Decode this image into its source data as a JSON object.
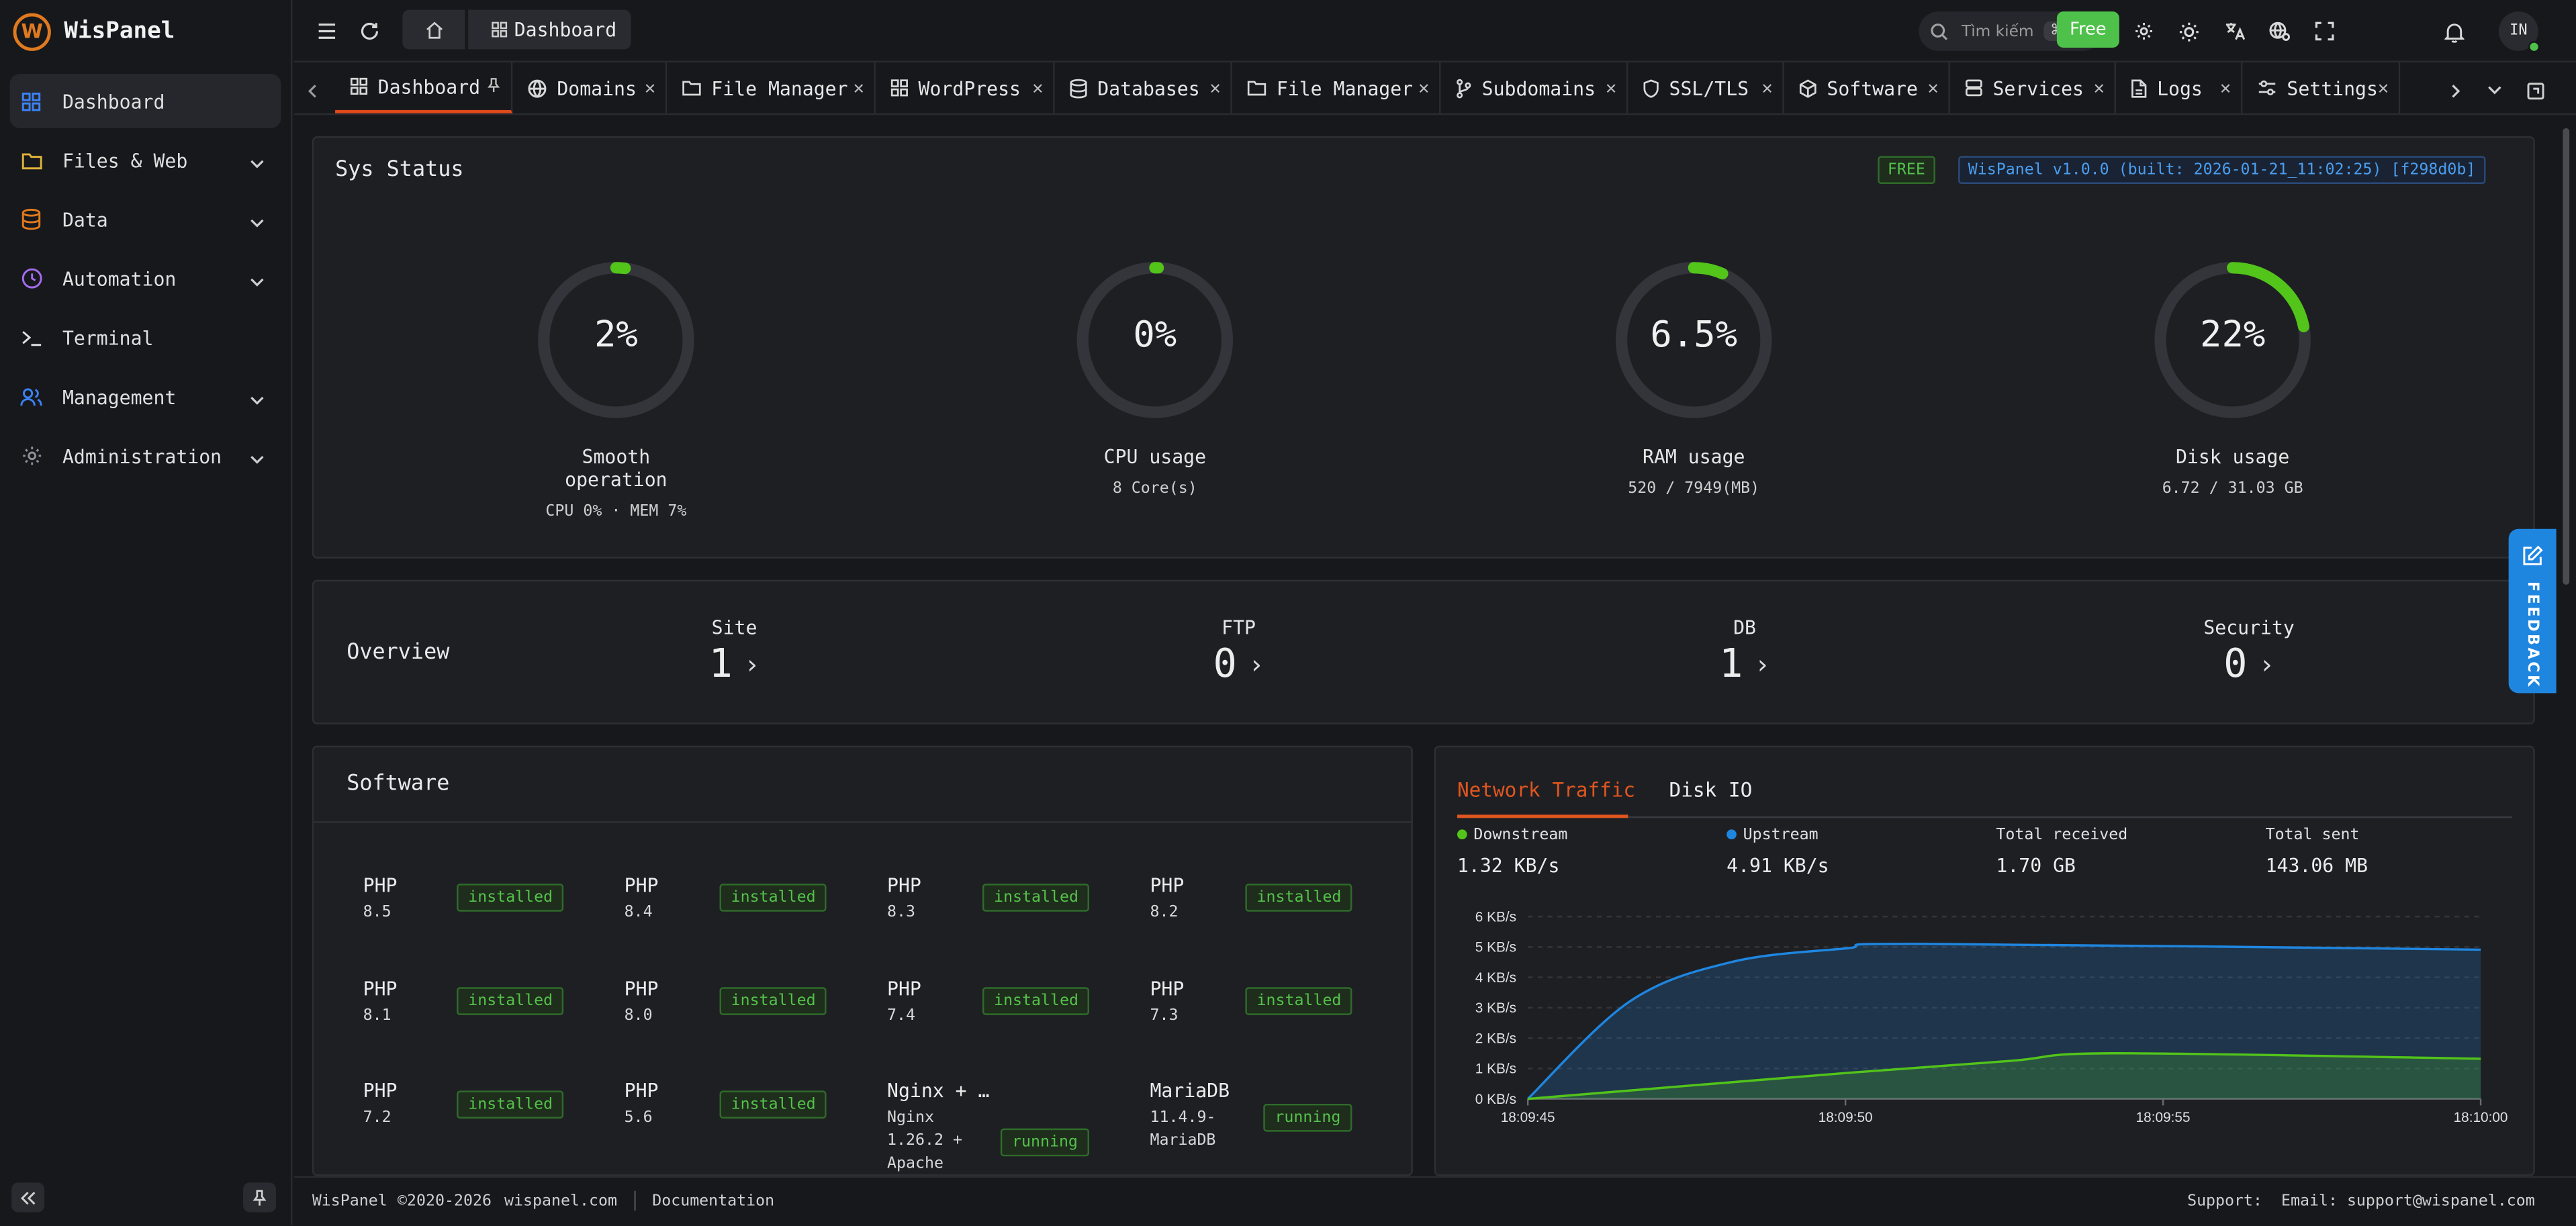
{
  "brand": {
    "name": "WisPanel",
    "logo_letter": "W"
  },
  "sidebar": {
    "items": [
      {
        "label": "Dashboard",
        "icon": "grid-icon",
        "active": true
      },
      {
        "label": "Files & Web",
        "icon": "folder-icon",
        "expandable": true
      },
      {
        "label": "Data",
        "icon": "database-icon",
        "expandable": true
      },
      {
        "label": "Automation",
        "icon": "clock-icon",
        "expandable": true
      },
      {
        "label": "Terminal",
        "icon": "terminal-icon"
      },
      {
        "label": "Management",
        "icon": "users-icon",
        "expandable": true
      },
      {
        "label": "Administration",
        "icon": "gear-icon",
        "expandable": true
      }
    ]
  },
  "topbar": {
    "breadcrumb": "Dashboard",
    "search_placeholder": "Tìm kiếm",
    "search_shortcut": "⌘ K",
    "free_label": "Free",
    "avatar": "IN"
  },
  "tabs": [
    {
      "label": "Dashboard",
      "icon": "grid-icon",
      "pinned": true,
      "active": true
    },
    {
      "label": "Domains",
      "icon": "globe-icon"
    },
    {
      "label": "File Manager",
      "icon": "folder-icon"
    },
    {
      "label": "WordPress",
      "icon": "grid-icon"
    },
    {
      "label": "Databases",
      "icon": "database-icon"
    },
    {
      "label": "File Manager",
      "icon": "folder-icon"
    },
    {
      "label": "Subdomains",
      "icon": "branch-icon"
    },
    {
      "label": "SSL/TLS",
      "icon": "shield-icon"
    },
    {
      "label": "Software",
      "icon": "package-icon"
    },
    {
      "label": "Services",
      "icon": "server-icon"
    },
    {
      "label": "Logs",
      "icon": "file-icon"
    },
    {
      "label": "Settings",
      "icon": "sliders-icon"
    }
  ],
  "sys_status": {
    "title": "Sys Status",
    "badge_free": "FREE",
    "version": "WisPanel v1.0.0 (built: 2026-01-21_11:02:25) [f298d0b]",
    "gauges": [
      {
        "value": "2%",
        "label": "Smooth operation",
        "sub": "CPU 0% · MEM 7%",
        "fraction": 0.02
      },
      {
        "value": "0%",
        "label": "CPU usage",
        "sub": "8 Core(s)",
        "fraction": 0.0
      },
      {
        "value": "6.5%",
        "label": "RAM usage",
        "sub": "520 / 7949(MB)",
        "fraction": 0.065
      },
      {
        "value": "22%",
        "label": "Disk usage",
        "sub": "6.72 / 31.03 GB",
        "fraction": 0.22
      }
    ],
    "gauge_color": "#52c41a",
    "track_color": "#34353a"
  },
  "overview": {
    "title": "Overview",
    "items": [
      {
        "label": "Site",
        "value": "1"
      },
      {
        "label": "FTP",
        "value": "0"
      },
      {
        "label": "DB",
        "value": "1"
      },
      {
        "label": "Security",
        "value": "0"
      }
    ]
  },
  "software": {
    "title": "Software",
    "items": [
      {
        "name": "PHP",
        "version": "8.5",
        "status": "installed"
      },
      {
        "name": "PHP",
        "version": "8.4",
        "status": "installed"
      },
      {
        "name": "PHP",
        "version": "8.3",
        "status": "installed"
      },
      {
        "name": "PHP",
        "version": "8.2",
        "status": "installed"
      },
      {
        "name": "PHP",
        "version": "8.1",
        "status": "installed"
      },
      {
        "name": "PHP",
        "version": "8.0",
        "status": "installed"
      },
      {
        "name": "PHP",
        "version": "7.4",
        "status": "installed"
      },
      {
        "name": "PHP",
        "version": "7.3",
        "status": "installed"
      },
      {
        "name": "PHP",
        "version": "7.2",
        "status": "installed"
      },
      {
        "name": "PHP",
        "version": "5.6",
        "status": "installed"
      },
      {
        "name": "Nginx + …",
        "version": "Nginx\n1.26.2 +\nApache",
        "status": "running"
      },
      {
        "name": "MariaDB",
        "version": "11.4.9-\nMariaDB",
        "status": "running"
      }
    ]
  },
  "network": {
    "tabs": [
      "Network Traffic",
      "Disk IO"
    ],
    "active_tab": "Network Traffic",
    "stats": [
      {
        "label": "Downstream",
        "value": "1.32 KB/s",
        "color": "#52c41a"
      },
      {
        "label": "Upstream",
        "value": "4.91 KB/s",
        "color": "#1f86e0"
      },
      {
        "label": "Total received",
        "value": "1.70 GB"
      },
      {
        "label": "Total sent",
        "value": "143.06 MB"
      }
    ]
  },
  "chart_data": {
    "type": "area",
    "x": [
      "18:09:45",
      "18:09:50",
      "18:09:55",
      "18:10:00"
    ],
    "yticks": [
      "0 KB/s",
      "1 KB/s",
      "2 KB/s",
      "3 KB/s",
      "4 KB/s",
      "5 KB/s",
      "6 KB/s"
    ],
    "ylim": [
      0,
      6
    ],
    "series": [
      {
        "name": "Upstream",
        "color": "#1f86e0",
        "points": [
          [
            0,
            0
          ],
          [
            1.6,
            3.2
          ],
          [
            3.2,
            4.5
          ],
          [
            5,
            4.95
          ],
          [
            6.2,
            5.1
          ],
          [
            15,
            4.91
          ]
        ]
      },
      {
        "name": "Downstream",
        "color": "#52c41a",
        "points": [
          [
            0,
            0
          ],
          [
            5,
            0.85
          ],
          [
            7.6,
            1.25
          ],
          [
            9.2,
            1.5
          ],
          [
            15,
            1.32
          ]
        ]
      }
    ],
    "x_seconds": [
      0,
      5,
      10,
      15
    ],
    "grid": true
  },
  "footer": {
    "brand": "WisPanel",
    "copyright": "©2020-2026",
    "site": "wispanel.com",
    "docs": "Documentation",
    "support": "Support:  Email: support@wispanel.com"
  },
  "feedback_label": "FEEDBACK"
}
